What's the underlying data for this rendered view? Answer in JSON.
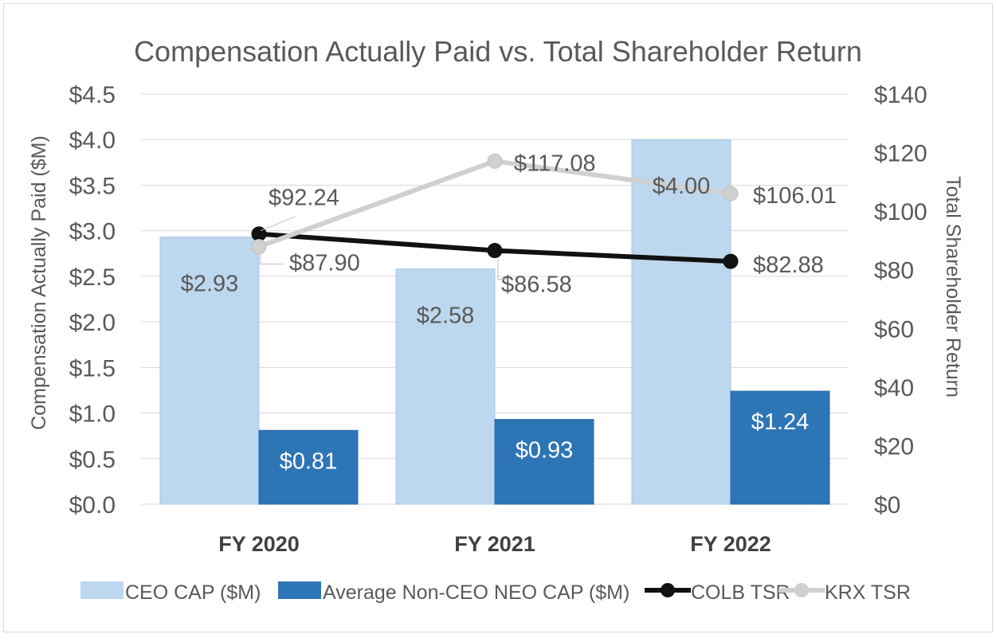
{
  "chart_data": {
    "type": "bar",
    "title": "Compensation Actually Paid vs. Total Shareholder Return",
    "categories": [
      "FY 2020",
      "FY 2021",
      "FY 2022"
    ],
    "ylabel": "Compensation Actually Paid ($M)",
    "y2label": "Total Shareholder Return",
    "ylim": [
      0,
      4.5
    ],
    "y2lim": [
      0,
      140
    ],
    "yticks": [
      "$0.0",
      "$0.5",
      "$1.0",
      "$1.5",
      "$2.0",
      "$2.5",
      "$3.0",
      "$3.5",
      "$4.0",
      "$4.5"
    ],
    "y2ticks": [
      "$0",
      "$20",
      "$40",
      "$60",
      "$80",
      "$100",
      "$120",
      "$140"
    ],
    "grid": true,
    "legend_position": "bottom",
    "series": [
      {
        "name": "CEO CAP ($M)",
        "kind": "bar",
        "axis": "left",
        "color": "#bdd7ee",
        "values": [
          2.93,
          2.58,
          4.0
        ],
        "labels": [
          "$2.93",
          "$2.58",
          "$4.00"
        ]
      },
      {
        "name": "Average Non-CEO NEO CAP ($M)",
        "kind": "bar",
        "axis": "left",
        "color": "#2e75b6",
        "values": [
          0.81,
          0.93,
          1.24
        ],
        "labels": [
          "$0.81",
          "$0.93",
          "$1.24"
        ]
      },
      {
        "name": "COLB TSR",
        "kind": "line",
        "axis": "right",
        "color": "#111111",
        "values": [
          92.24,
          86.58,
          82.88
        ],
        "labels": [
          "$92.24",
          "$86.58",
          "$82.88"
        ]
      },
      {
        "name": "KRX TSR",
        "kind": "line",
        "axis": "right",
        "color": "#d0d0d0",
        "values": [
          87.9,
          117.08,
          106.01
        ],
        "labels": [
          "$87.90",
          "$117.08",
          "$106.01"
        ]
      }
    ]
  }
}
